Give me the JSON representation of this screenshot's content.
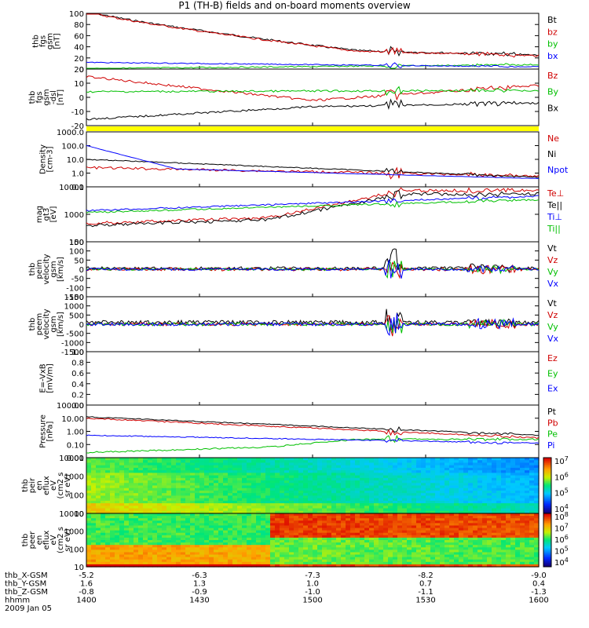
{
  "title": "P1 (TH-B) fields and on-board moments overview",
  "colors": {
    "black": "#000000",
    "red": "#d00000",
    "green": "#00c000",
    "blue": "#0000ff",
    "yellow": "#ffff00"
  },
  "chart_data": [
    {
      "type": "line",
      "ylabel": [
        "thb",
        "fgs",
        "gsm",
        "[nT]"
      ],
      "ylim": [
        0,
        100
      ],
      "yticks": [
        "100",
        "80",
        "60",
        "40",
        "20",
        "0"
      ],
      "series": [
        {
          "name": "Bt",
          "color": "black"
        },
        {
          "name": "bz",
          "color": "red"
        },
        {
          "name": "by",
          "color": "green"
        },
        {
          "name": "bx",
          "color": "blue"
        }
      ]
    },
    {
      "type": "line",
      "ylabel": [
        "thb",
        "fgs",
        "gsm",
        "-dsl",
        "[nT]"
      ],
      "ylim": [
        -25,
        20
      ],
      "yticks": [
        "20",
        "10",
        "0",
        "-10",
        "-20"
      ],
      "series": [
        {
          "name": "Bz",
          "color": "red"
        },
        {
          "name": "By",
          "color": "green"
        },
        {
          "name": "Bx",
          "color": "black"
        }
      ]
    },
    {
      "type": "flag",
      "note": "yellow status bar"
    },
    {
      "type": "line",
      "scale": "log",
      "ylabel": [
        "Density",
        "[cm-3]"
      ],
      "yticks": [
        "1000.0",
        "100.0",
        "10.0",
        "1.0",
        "0.1"
      ],
      "series": [
        {
          "name": "Ne",
          "color": "red"
        },
        {
          "name": "Ni",
          "color": "black"
        },
        {
          "name": "Npot",
          "color": "blue"
        }
      ]
    },
    {
      "type": "line",
      "scale": "log",
      "ylabel": [
        "mag",
        "gt3",
        "[eV]"
      ],
      "yticks": [
        "10000",
        "1000",
        "100"
      ],
      "series": [
        {
          "name": "Te⊥",
          "color": "red"
        },
        {
          "name": "Te||",
          "color": "black"
        },
        {
          "name": "Ti⊥",
          "color": "blue"
        },
        {
          "name": "Ti||",
          "color": "green"
        }
      ]
    },
    {
      "type": "line",
      "ylabel": [
        "thb",
        "peim",
        "velocity",
        "gsm",
        "[km/s]"
      ],
      "ylim": [
        -150,
        150
      ],
      "yticks": [
        "150",
        "100",
        "50",
        "0",
        "-50",
        "-100",
        "-150"
      ],
      "series": [
        {
          "name": "Vt",
          "color": "black"
        },
        {
          "name": "Vz",
          "color": "red"
        },
        {
          "name": "Vy",
          "color": "green"
        },
        {
          "name": "Vx",
          "color": "blue"
        }
      ]
    },
    {
      "type": "line",
      "ylabel": [
        "thb",
        "peem",
        "velocity",
        "gsm",
        "[km/s]"
      ],
      "ylim": [
        -1500,
        1500
      ],
      "yticks": [
        "1500",
        "1000",
        "500",
        "0",
        "-500",
        "-1000",
        "-1500"
      ],
      "series": [
        {
          "name": "Vt",
          "color": "black"
        },
        {
          "name": "Vz",
          "color": "red"
        },
        {
          "name": "Vy",
          "color": "green"
        },
        {
          "name": "Vx",
          "color": "blue"
        }
      ]
    },
    {
      "type": "line",
      "ylabel": [
        "E=-VxB",
        "[mV/m]"
      ],
      "ylim": [
        0,
        1
      ],
      "yticks": [
        "1.0",
        "0.8",
        "0.6",
        "0.4",
        "0.2",
        "0.0"
      ],
      "series": [
        {
          "name": "Ez",
          "color": "red"
        },
        {
          "name": "Ey",
          "color": "green"
        },
        {
          "name": "Ex",
          "color": "blue"
        }
      ]
    },
    {
      "type": "line",
      "scale": "log",
      "ylabel": [
        "Pressure",
        "[nPa]"
      ],
      "yticks": [
        "100.00",
        "10.00",
        "1.00",
        "0.10",
        "0.01"
      ],
      "series": [
        {
          "name": "Pt",
          "color": "black"
        },
        {
          "name": "Pb",
          "color": "red"
        },
        {
          "name": "Pe",
          "color": "green"
        },
        {
          "name": "Pi",
          "color": "blue"
        }
      ]
    },
    {
      "type": "heatmap",
      "ylabel": [
        "thb",
        "peir",
        "en",
        "eflux",
        "eV",
        "(cm2 s",
        "sr eV)"
      ],
      "yticks": [
        "10000",
        "1000",
        "100",
        "10"
      ],
      "colorbar": [
        "10^7",
        "10^6",
        "10^5",
        "10^4"
      ]
    },
    {
      "type": "heatmap",
      "ylabel": [
        "thb",
        "peer",
        "en",
        "eflux",
        "eV",
        "(cm2 s",
        "sr eV)"
      ],
      "yticks": [
        "10000",
        "1000",
        "100",
        "10"
      ],
      "colorbar": [
        "10^8",
        "10^7",
        "10^6",
        "10^5",
        "10^4"
      ]
    }
  ],
  "xaxis": {
    "rows": [
      {
        "label": "thb_X-GSM",
        "values": [
          "-5.2",
          "-6.3",
          "-7.3",
          "-8.2",
          "-9.0"
        ]
      },
      {
        "label": "thb_Y-GSM",
        "values": [
          "1.6",
          "1.3",
          "1.0",
          "0.7",
          "0.4"
        ]
      },
      {
        "label": "thb_Z-GSM",
        "values": [
          "-0.8",
          "-0.9",
          "-1.0",
          "-1.1",
          "-1.3"
        ]
      },
      {
        "label": "hhmm",
        "values": [
          "1400",
          "1430",
          "1500",
          "1530",
          "1600"
        ]
      }
    ],
    "date": "2009 Jan 05"
  }
}
